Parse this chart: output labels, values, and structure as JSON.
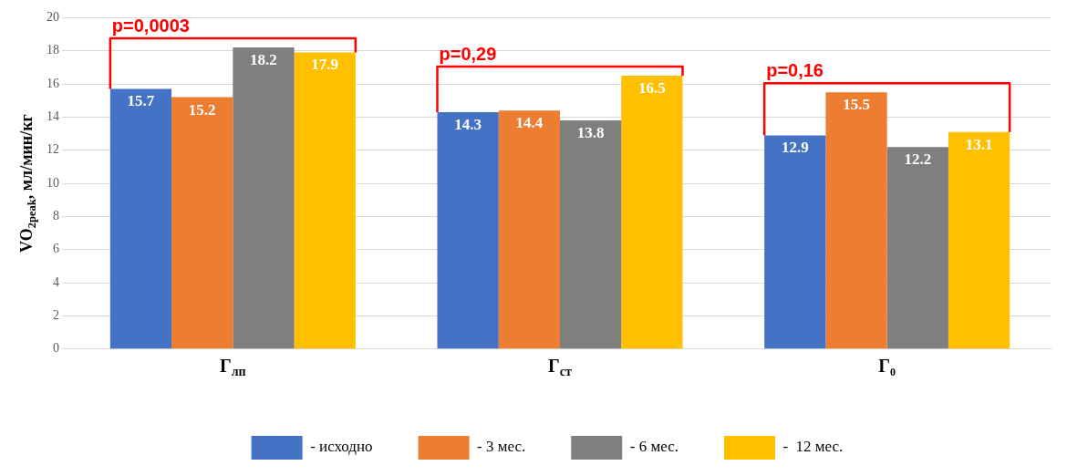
{
  "chart_data": {
    "type": "bar",
    "ylabel": "VO$_{2peak}$, мл/мин/кг",
    "categories": [
      "Г$_{лп}$",
      "Г$_{ст}$",
      "Г₀"
    ],
    "series": [
      {
        "name": "- исходно",
        "color": "#4472c4",
        "values": [
          15.7,
          14.3,
          12.9
        ]
      },
      {
        "name": "- 3 мес.",
        "color": "#ed7d31",
        "values": [
          15.2,
          14.4,
          15.5
        ]
      },
      {
        "name": "- 6 мес.",
        "color": "#7f7f7f",
        "values": [
          18.2,
          13.8,
          12.2
        ]
      },
      {
        "name": "-  12 мес.",
        "color": "#ffc000",
        "values": [
          17.9,
          16.5,
          13.1
        ]
      }
    ],
    "ylim": [
      0,
      20
    ],
    "yticks": [
      0,
      2,
      4,
      6,
      8,
      10,
      12,
      14,
      16,
      18,
      20
    ],
    "grid": "y",
    "legend": "bottom",
    "data_labels": true,
    "annotations": [
      "p=0,0003",
      "p=0,29",
      "p=0,16"
    ]
  }
}
